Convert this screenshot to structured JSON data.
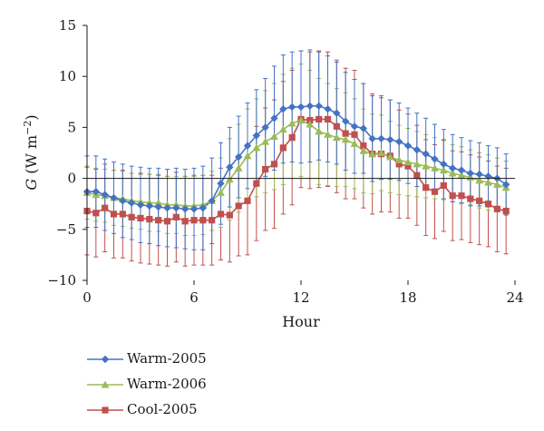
{
  "chart_data": {
    "type": "line",
    "xlabel": "Hour",
    "ylabel": "G (W m−2)",
    "ylabel_parts": {
      "var": "G",
      "unit": " (W m",
      "exp": "−2",
      "close": ")"
    },
    "xlim": [
      0,
      24
    ],
    "ylim": [
      -10,
      15
    ],
    "xticks": [
      0,
      6,
      12,
      18,
      24
    ],
    "yticks": [
      -10,
      -5,
      0,
      5,
      10,
      15
    ],
    "grid": false,
    "legend_position": "bottom-left",
    "x": [
      0,
      0.5,
      1,
      1.5,
      2,
      2.5,
      3,
      3.5,
      4,
      4.5,
      5,
      5.5,
      6,
      6.5,
      7,
      7.5,
      8,
      8.5,
      9,
      9.5,
      10,
      10.5,
      11,
      11.5,
      12,
      12.5,
      13,
      13.5,
      14,
      14.5,
      15,
      15.5,
      16,
      16.5,
      17,
      17.5,
      18,
      18.5,
      19,
      19.5,
      20,
      20.5,
      21,
      21.5,
      22,
      22.5,
      23,
      23.5
    ],
    "series": [
      {
        "name": "Warm-2005",
        "color": "#4472c4",
        "marker": "diamond",
        "values": [
          -1.3,
          -1.3,
          -1.6,
          -1.9,
          -2.2,
          -2.4,
          -2.6,
          -2.7,
          -2.8,
          -2.9,
          -2.9,
          -3.0,
          -3.0,
          -2.9,
          -2.2,
          -0.5,
          1.1,
          2.1,
          3.2,
          4.2,
          5.0,
          5.9,
          6.8,
          7.0,
          7.0,
          7.1,
          7.1,
          6.8,
          6.4,
          5.6,
          5.1,
          4.9,
          3.9,
          3.9,
          3.8,
          3.6,
          3.2,
          2.8,
          2.4,
          1.9,
          1.4,
          1.0,
          0.8,
          0.5,
          0.4,
          0.2,
          0.0,
          -0.6
        ],
        "errors": [
          3.5,
          3.5,
          3.5,
          3.5,
          3.6,
          3.6,
          3.7,
          3.7,
          3.8,
          3.8,
          3.9,
          3.9,
          4.0,
          4.1,
          4.2,
          4.0,
          3.9,
          4.0,
          4.2,
          4.5,
          4.8,
          5.1,
          5.3,
          5.4,
          5.5,
          5.5,
          5.3,
          5.2,
          5.0,
          4.8,
          4.6,
          4.4,
          4.2,
          4.0,
          3.9,
          3.8,
          3.7,
          3.6,
          3.5,
          3.4,
          3.4,
          3.3,
          3.2,
          3.2,
          3.1,
          3.0,
          3.0,
          3.0
        ]
      },
      {
        "name": "Warm-2006",
        "color": "#9bbb59",
        "marker": "triangle",
        "values": [
          -1.4,
          -1.6,
          -1.7,
          -1.9,
          -2.0,
          -2.2,
          -2.3,
          -2.4,
          -2.4,
          -2.6,
          -2.6,
          -2.7,
          -2.7,
          -2.6,
          -2.2,
          -1.4,
          -0.1,
          1.0,
          2.2,
          3.0,
          3.6,
          4.1,
          4.8,
          5.4,
          5.7,
          5.3,
          4.6,
          4.3,
          4.0,
          3.8,
          3.4,
          2.7,
          2.4,
          2.5,
          2.1,
          1.8,
          1.6,
          1.4,
          1.2,
          1.0,
          0.8,
          0.5,
          0.3,
          0.1,
          -0.2,
          -0.4,
          -0.6,
          -0.9
        ],
        "errors": [
          2.6,
          2.6,
          2.6,
          2.7,
          2.7,
          2.7,
          2.7,
          2.8,
          2.8,
          2.8,
          2.8,
          2.9,
          2.9,
          2.9,
          2.9,
          3.4,
          4.0,
          4.3,
          4.6,
          4.8,
          5.0,
          5.2,
          5.4,
          5.4,
          5.5,
          5.3,
          5.2,
          5.0,
          4.8,
          4.6,
          4.4,
          4.1,
          3.9,
          3.7,
          3.5,
          3.4,
          3.3,
          3.2,
          3.1,
          3.0,
          2.9,
          2.8,
          2.8,
          2.7,
          2.7,
          2.7,
          2.6,
          2.6
        ]
      },
      {
        "name": "Cool-2005",
        "color": "#c0504d",
        "marker": "square",
        "values": [
          -3.2,
          -3.4,
          -2.9,
          -3.5,
          -3.5,
          -3.8,
          -3.9,
          -4.0,
          -4.1,
          -4.2,
          -3.8,
          -4.2,
          -4.1,
          -4.1,
          -4.1,
          -3.5,
          -3.6,
          -2.7,
          -2.2,
          -0.5,
          0.9,
          1.4,
          3.0,
          4.0,
          5.8,
          5.7,
          5.8,
          5.8,
          5.1,
          4.4,
          4.3,
          3.2,
          2.4,
          2.4,
          2.2,
          1.4,
          1.2,
          0.3,
          -0.9,
          -1.3,
          -0.7,
          -1.7,
          -1.7,
          -2.0,
          -2.2,
          -2.5,
          -3.0,
          -3.2
        ],
        "errors": [
          4.3,
          4.3,
          4.3,
          4.3,
          4.3,
          4.3,
          4.4,
          4.4,
          4.4,
          4.4,
          4.4,
          4.4,
          4.4,
          4.4,
          4.4,
          4.5,
          4.6,
          4.9,
          5.3,
          5.6,
          6.0,
          6.3,
          6.5,
          6.6,
          6.7,
          6.7,
          6.7,
          6.6,
          6.5,
          6.4,
          6.3,
          6.1,
          5.9,
          5.7,
          5.5,
          5.3,
          5.1,
          4.9,
          4.7,
          4.6,
          4.5,
          4.4,
          4.3,
          4.3,
          4.3,
          4.2,
          4.2,
          4.2
        ]
      }
    ]
  }
}
